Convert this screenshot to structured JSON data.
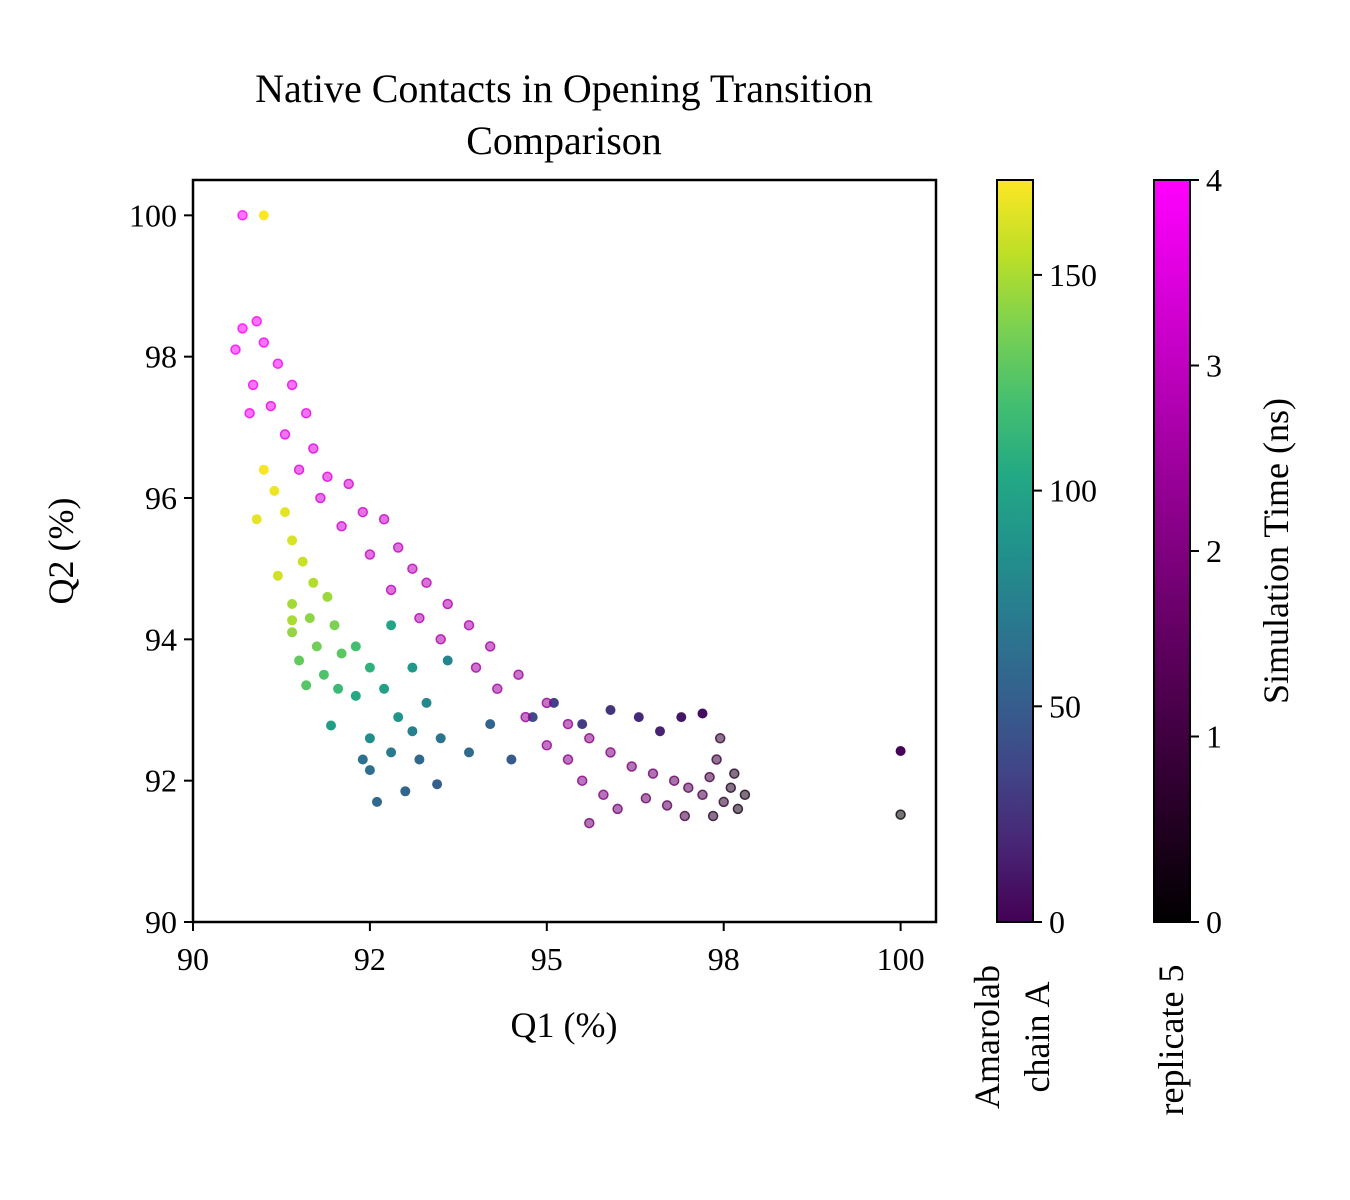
{
  "chart_data": {
    "type": "scatter",
    "title": [
      "Native Contacts in Opening Transition",
      "Comparison"
    ],
    "xlabel": "Q1 (%)",
    "ylabel": "Q2 (%)",
    "xlim": [
      90,
      100.5
    ],
    "ylim": [
      90,
      100.5
    ],
    "xticks": [
      90,
      92.5,
      95,
      97.5,
      100
    ],
    "xtick_labels": [
      "90",
      "92",
      "95",
      "98",
      "100"
    ],
    "yticks": [
      90,
      92,
      94,
      96,
      98,
      100
    ],
    "ytick_labels": [
      "90",
      "92",
      "94",
      "96",
      "98",
      "100"
    ],
    "grid": false,
    "legend": "none",
    "series": [
      {
        "name": "Amarolab chain A",
        "colormap": "viridis",
        "color_label": "Amarolab\nchain A",
        "color_range": [
          0,
          172
        ],
        "color_ticks": [
          0,
          50,
          100,
          150
        ],
        "points": [
          [
            91.0,
            100.0,
            172
          ],
          [
            91.0,
            96.4,
            170
          ],
          [
            91.15,
            96.1,
            168
          ],
          [
            91.3,
            95.8,
            165
          ],
          [
            90.9,
            95.7,
            166
          ],
          [
            91.4,
            95.4,
            162
          ],
          [
            91.55,
            95.1,
            158
          ],
          [
            91.2,
            94.9,
            160
          ],
          [
            91.7,
            94.8,
            152
          ],
          [
            91.4,
            94.5,
            148
          ],
          [
            91.9,
            94.6,
            146
          ],
          [
            91.65,
            94.3,
            142
          ],
          [
            91.4,
            94.1,
            144
          ],
          [
            91.4,
            94.27,
            150
          ],
          [
            92.0,
            94.2,
            138
          ],
          [
            91.75,
            93.9,
            135
          ],
          [
            91.5,
            93.7,
            130
          ],
          [
            92.1,
            93.8,
            128
          ],
          [
            91.85,
            93.5,
            124
          ],
          [
            92.3,
            93.9,
            120
          ],
          [
            91.6,
            93.35,
            126
          ],
          [
            92.05,
            93.3,
            116
          ],
          [
            92.5,
            93.6,
            110
          ],
          [
            92.8,
            94.2,
            100
          ],
          [
            92.3,
            93.2,
            104
          ],
          [
            92.7,
            93.3,
            98
          ],
          [
            93.1,
            93.6,
            92
          ],
          [
            92.9,
            92.9,
            88
          ],
          [
            91.95,
            92.78,
            95
          ],
          [
            92.5,
            92.6,
            84
          ],
          [
            93.3,
            93.1,
            80
          ],
          [
            93.6,
            93.7,
            78
          ],
          [
            93.1,
            92.7,
            74
          ],
          [
            92.8,
            92.4,
            70
          ],
          [
            93.5,
            92.6,
            66
          ],
          [
            92.4,
            92.3,
            64
          ],
          [
            93.9,
            92.4,
            60
          ],
          [
            94.2,
            92.8,
            56
          ],
          [
            93.2,
            92.3,
            58
          ],
          [
            92.5,
            92.15,
            62
          ],
          [
            93.45,
            91.95,
            52
          ],
          [
            94.5,
            92.3,
            48
          ],
          [
            93.0,
            91.85,
            56
          ],
          [
            92.6,
            91.7,
            58
          ],
          [
            94.8,
            92.9,
            40
          ],
          [
            95.1,
            93.1,
            34
          ],
          [
            95.5,
            92.8,
            30
          ],
          [
            95.9,
            93.0,
            26
          ],
          [
            96.3,
            92.9,
            20
          ],
          [
            96.6,
            92.7,
            16
          ],
          [
            96.9,
            92.9,
            10
          ],
          [
            97.2,
            92.95,
            6
          ],
          [
            100.0,
            92.42,
            2
          ]
        ]
      },
      {
        "name": "replicate 5",
        "colormap": "black-magenta",
        "color_label": "Simulation Time (ns)",
        "color_range": [
          0,
          4
        ],
        "color_ticks": [
          0,
          1,
          2,
          3,
          4
        ],
        "points": [
          [
            90.7,
            100.0,
            3.98
          ],
          [
            90.7,
            98.4,
            3.95
          ],
          [
            90.9,
            98.5,
            3.9
          ],
          [
            90.6,
            98.1,
            3.92
          ],
          [
            91.0,
            98.2,
            3.85
          ],
          [
            91.2,
            97.9,
            3.8
          ],
          [
            90.85,
            97.6,
            3.82
          ],
          [
            91.4,
            97.6,
            3.72
          ],
          [
            90.8,
            97.2,
            3.78
          ],
          [
            91.1,
            97.3,
            3.7
          ],
          [
            91.6,
            97.2,
            3.6
          ],
          [
            91.3,
            96.9,
            3.62
          ],
          [
            91.7,
            96.7,
            3.5
          ],
          [
            91.5,
            96.4,
            3.45
          ],
          [
            91.9,
            96.3,
            3.4
          ],
          [
            92.2,
            96.2,
            3.32
          ],
          [
            91.8,
            96.0,
            3.35
          ],
          [
            92.4,
            95.8,
            3.22
          ],
          [
            92.7,
            95.7,
            3.12
          ],
          [
            92.1,
            95.6,
            3.25
          ],
          [
            92.9,
            95.3,
            3.02
          ],
          [
            92.5,
            95.2,
            3.1
          ],
          [
            93.1,
            95.0,
            2.92
          ],
          [
            93.3,
            94.8,
            2.86
          ],
          [
            92.8,
            94.7,
            2.96
          ],
          [
            93.6,
            94.5,
            2.76
          ],
          [
            93.2,
            94.3,
            2.82
          ],
          [
            93.9,
            94.2,
            2.68
          ],
          [
            93.5,
            94.0,
            2.72
          ],
          [
            94.2,
            93.9,
            2.6
          ],
          [
            94.0,
            93.6,
            2.56
          ],
          [
            94.6,
            93.5,
            2.46
          ],
          [
            94.3,
            93.3,
            2.5
          ],
          [
            95.0,
            93.1,
            2.36
          ],
          [
            94.7,
            92.9,
            2.4
          ],
          [
            95.3,
            92.8,
            2.26
          ],
          [
            95.0,
            92.5,
            2.3
          ],
          [
            95.6,
            92.6,
            2.16
          ],
          [
            95.3,
            92.3,
            2.2
          ],
          [
            95.9,
            92.4,
            2.04
          ],
          [
            95.5,
            92.0,
            2.1
          ],
          [
            96.2,
            92.2,
            1.9
          ],
          [
            95.8,
            91.8,
            1.96
          ],
          [
            96.5,
            92.1,
            1.74
          ],
          [
            96.0,
            91.6,
            1.8
          ],
          [
            95.6,
            91.4,
            1.88
          ],
          [
            96.8,
            92.0,
            1.56
          ],
          [
            96.4,
            91.75,
            1.62
          ],
          [
            97.0,
            91.9,
            1.36
          ],
          [
            96.7,
            91.65,
            1.42
          ],
          [
            97.2,
            91.8,
            1.18
          ],
          [
            97.3,
            92.05,
            1.1
          ],
          [
            96.95,
            91.5,
            1.06
          ],
          [
            97.4,
            92.3,
            0.92
          ],
          [
            97.5,
            91.7,
            0.72
          ],
          [
            97.45,
            92.6,
            0.8
          ],
          [
            97.65,
            92.1,
            0.52
          ],
          [
            97.6,
            91.9,
            0.48
          ],
          [
            97.8,
            91.8,
            0.32
          ],
          [
            97.35,
            91.5,
            0.62
          ],
          [
            97.7,
            91.6,
            0.36
          ],
          [
            100.0,
            91.52,
            0.08
          ]
        ]
      }
    ]
  }
}
